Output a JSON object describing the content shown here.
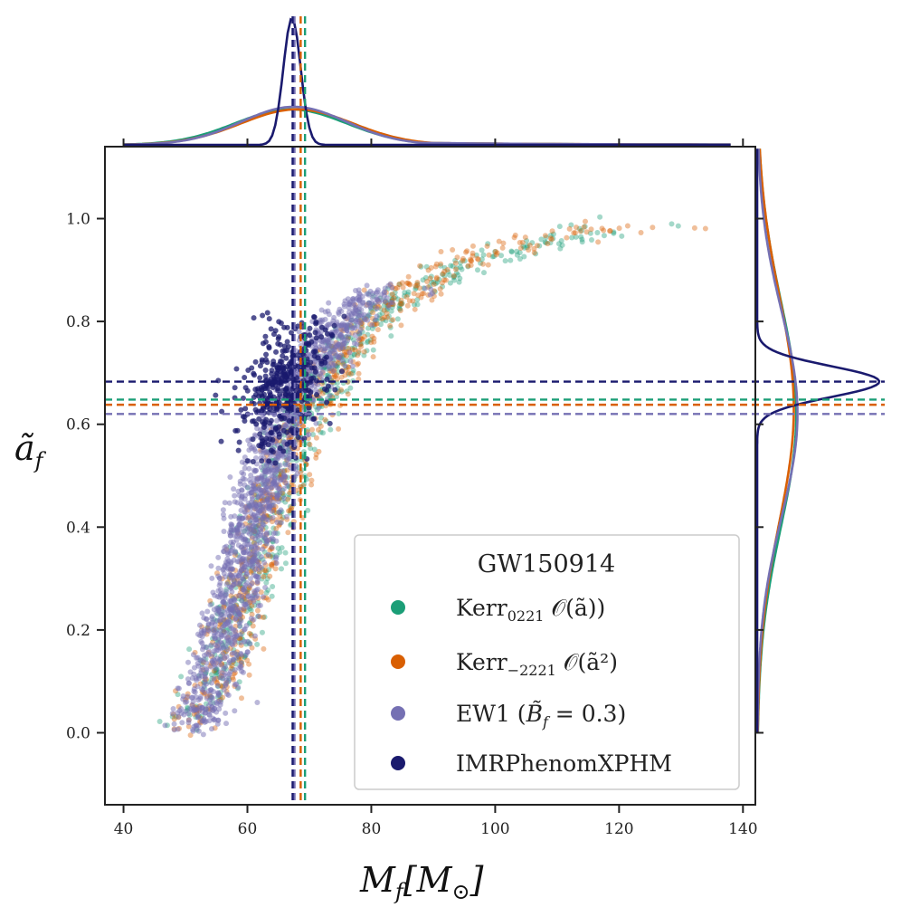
{
  "chart_data": {
    "type": "scatter",
    "title": "",
    "xlabel": {
      "main": "M",
      "sub": "f",
      "unit": "[M",
      "unit_sub": "⊙",
      "unit_close": "]"
    },
    "ylabel": {
      "main": "ã",
      "sub": "f"
    },
    "xlim": [
      37,
      142
    ],
    "ylim": [
      -0.14,
      1.14
    ],
    "xticks": [
      40,
      60,
      80,
      100,
      120,
      140
    ],
    "xtick_labels": [
      "40",
      "60",
      "80",
      "100",
      "120",
      "140"
    ],
    "yticks": [
      0.0,
      0.2,
      0.4,
      0.6,
      0.8,
      1.0
    ],
    "ytick_labels": [
      "0.0",
      "0.2",
      "0.4",
      "0.6",
      "0.8",
      "1.0"
    ],
    "grid": false,
    "legend_placement": "lower-right",
    "legend": {
      "title": "GW150914",
      "entries": [
        {
          "key": "kerr0221",
          "label": "Kerr",
          "sub": "0221",
          "tail": " 𝒪(ã))",
          "color": "#1b9e77"
        },
        {
          "key": "kerr2221",
          "label": "Kerr",
          "sub": "−2221",
          "tail": " 𝒪(ã²)",
          "color": "#d95f02"
        },
        {
          "key": "ew1",
          "label": "EW1 (",
          "sub": "",
          "tail": "B̃",
          "tail2": "f",
          "tail3": " = 0.3)",
          "color": "#7570b3"
        },
        {
          "key": "imr",
          "label": "IMRPhenomXPHM",
          "sub": "",
          "tail": "",
          "color": "#1a1a6e"
        }
      ]
    },
    "series": [
      {
        "name": "Kerr₀₂₂₁ 𝒪(ã))",
        "color": "#1b9e77",
        "median_Mf": 69.3,
        "median_af": 0.648,
        "band": {
          "points": [
            [
              46,
              0.01
            ],
            [
              50,
              0.02
            ],
            [
              54,
              0.1
            ],
            [
              58,
              0.25
            ],
            [
              62,
              0.4
            ],
            [
              66,
              0.55
            ],
            [
              70,
              0.66
            ],
            [
              76,
              0.76
            ],
            [
              84,
              0.85
            ],
            [
              94,
              0.91
            ],
            [
              106,
              0.95
            ],
            [
              118,
              0.98
            ],
            [
              132,
              0.99
            ]
          ],
          "width_x": 7
        }
      },
      {
        "name": "Kerr₋₂₂₂₁ 𝒪(ã²)",
        "color": "#d95f02",
        "median_Mf": 68.6,
        "median_af": 0.638,
        "band": {
          "points": [
            [
              46,
              0.01
            ],
            [
              50,
              0.02
            ],
            [
              54,
              0.1
            ],
            [
              58,
              0.25
            ],
            [
              62,
              0.4
            ],
            [
              66,
              0.55
            ],
            [
              70,
              0.66
            ],
            [
              76,
              0.76
            ],
            [
              84,
              0.86
            ],
            [
              94,
              0.92
            ],
            [
              106,
              0.96
            ],
            [
              118,
              0.98
            ],
            [
              130,
              0.99
            ]
          ],
          "width_x": 7
        }
      },
      {
        "name": "EW1 (B̃f = 0.3)",
        "color": "#7570b3",
        "median_Mf": 67.6,
        "median_af": 0.62,
        "band": {
          "points": [
            [
              50,
              0.0
            ],
            [
              53,
              0.08
            ],
            [
              56,
              0.22
            ],
            [
              59,
              0.37
            ],
            [
              62,
              0.5
            ],
            [
              65,
              0.6
            ],
            [
              68,
              0.68
            ],
            [
              72,
              0.76
            ],
            [
              76,
              0.82
            ],
            [
              80,
              0.855
            ],
            [
              86,
              0.86
            ]
          ],
          "width_x": 8,
          "cap": 0.86
        }
      },
      {
        "name": "IMRPhenomXPHM",
        "color": "#1a1a6e",
        "median_Mf": 67.3,
        "median_af": 0.683,
        "cluster": {
          "cx": 66.0,
          "cy": 0.68,
          "sx": 3.2,
          "sy": 0.07,
          "tilt": 0.03
        }
      }
    ],
    "marginal_x": [
      {
        "color": "#1b9e77",
        "mu": 67,
        "sigma": 9,
        "peak": 0.28,
        "tail": true
      },
      {
        "color": "#d95f02",
        "mu": 68,
        "sigma": 9,
        "peak": 0.28,
        "tail": true
      },
      {
        "color": "#7570b3",
        "mu": 67.5,
        "sigma": 8.5,
        "peak": 0.3,
        "tail": true
      },
      {
        "color": "#1a1a6e",
        "mu": 67.2,
        "sigma": 1.4,
        "peak": 1.0,
        "tail": false
      }
    ],
    "marginal_y": [
      {
        "color": "#1b9e77",
        "mu": 0.62,
        "sigma": 0.22,
        "peak": 0.32
      },
      {
        "color": "#d95f02",
        "mu": 0.63,
        "sigma": 0.22,
        "peak": 0.3
      },
      {
        "color": "#7570b3",
        "mu": 0.62,
        "sigma": 0.2,
        "peak": 0.33
      },
      {
        "color": "#1a1a6e",
        "mu": 0.683,
        "sigma": 0.03,
        "peak": 1.0
      }
    ]
  }
}
